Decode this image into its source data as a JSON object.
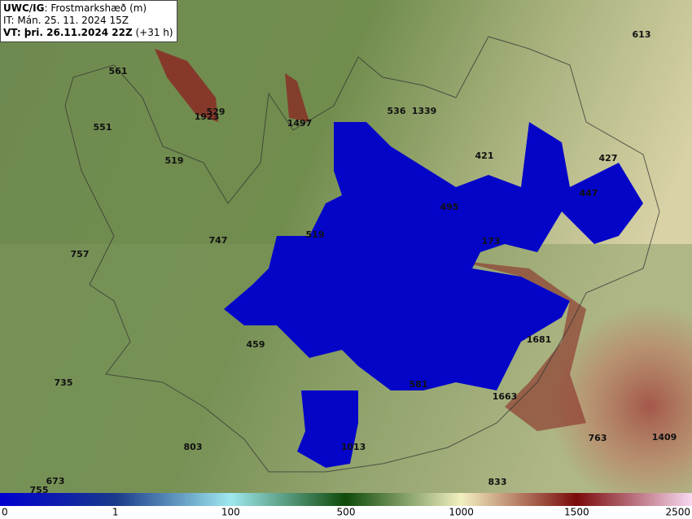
{
  "header": {
    "model": "UWC/IG",
    "field": ": Frostmarkshæð (m)",
    "init_time": "IT: Mán. 25. 11. 2024 15Z",
    "valid_time": "VT: þri. 26.11.2024 22Z",
    "lead": " (+31 h)"
  },
  "points": [
    613,
    561,
    529,
    1923,
    551,
    1497,
    536,
    1339,
    519,
    421,
    427,
    495,
    447,
    519,
    747,
    757,
    173,
    1681,
    459,
    581,
    1663,
    735,
    803,
    1013,
    763,
    1409,
    673,
    755,
    833
  ],
  "colorbar": {
    "ticks": [
      0,
      1,
      100,
      500,
      1000,
      1500,
      2500
    ]
  }
}
